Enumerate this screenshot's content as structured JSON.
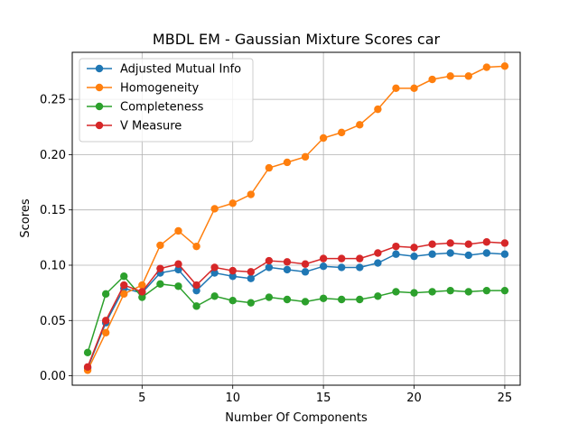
{
  "chart_data": {
    "type": "line",
    "title": "MBDL EM - Gaussian Mixture Scores car",
    "xlabel": "Number Of Components",
    "ylabel": "Scores",
    "xlim": [
      1.15,
      25.85
    ],
    "ylim": [
      -0.0085,
      0.2925
    ],
    "xticks": [
      5,
      10,
      15,
      20,
      25
    ],
    "xtick_labels": [
      "5",
      "10",
      "15",
      "20",
      "25"
    ],
    "yticks": [
      0.0,
      0.05,
      0.1,
      0.15,
      0.2,
      0.25
    ],
    "ytick_labels": [
      "0.00",
      "0.05",
      "0.10",
      "0.15",
      "0.20",
      "0.25"
    ],
    "grid": true,
    "legend_position": "upper-left",
    "x": [
      2,
      3,
      4,
      5,
      6,
      7,
      8,
      9,
      10,
      11,
      12,
      13,
      14,
      15,
      16,
      17,
      18,
      19,
      20,
      21,
      22,
      23,
      24,
      25
    ],
    "series": [
      {
        "name": "Adjusted Mutual Info",
        "color": "#1f77b4",
        "values": [
          0.007,
          0.048,
          0.079,
          0.075,
          0.093,
          0.096,
          0.077,
          0.093,
          0.09,
          0.088,
          0.098,
          0.096,
          0.094,
          0.099,
          0.098,
          0.098,
          0.102,
          0.11,
          0.108,
          0.11,
          0.111,
          0.109,
          0.111,
          0.11
        ]
      },
      {
        "name": "Homogeneity",
        "color": "#ff7f0e",
        "values": [
          0.005,
          0.039,
          0.074,
          0.082,
          0.118,
          0.131,
          0.117,
          0.151,
          0.156,
          0.164,
          0.188,
          0.193,
          0.198,
          0.215,
          0.22,
          0.227,
          0.241,
          0.26,
          0.26,
          0.268,
          0.271,
          0.271,
          0.279,
          0.28
        ]
      },
      {
        "name": "Completeness",
        "color": "#2ca02c",
        "values": [
          0.021,
          0.074,
          0.09,
          0.071,
          0.083,
          0.081,
          0.063,
          0.072,
          0.068,
          0.066,
          0.071,
          0.069,
          0.067,
          0.07,
          0.069,
          0.069,
          0.072,
          0.076,
          0.075,
          0.076,
          0.077,
          0.076,
          0.077,
          0.077
        ]
      },
      {
        "name": "V Measure",
        "color": "#d62728",
        "values": [
          0.008,
          0.05,
          0.082,
          0.076,
          0.097,
          0.101,
          0.082,
          0.098,
          0.095,
          0.094,
          0.104,
          0.103,
          0.101,
          0.106,
          0.106,
          0.106,
          0.111,
          0.117,
          0.116,
          0.119,
          0.12,
          0.119,
          0.121,
          0.12
        ]
      }
    ]
  }
}
